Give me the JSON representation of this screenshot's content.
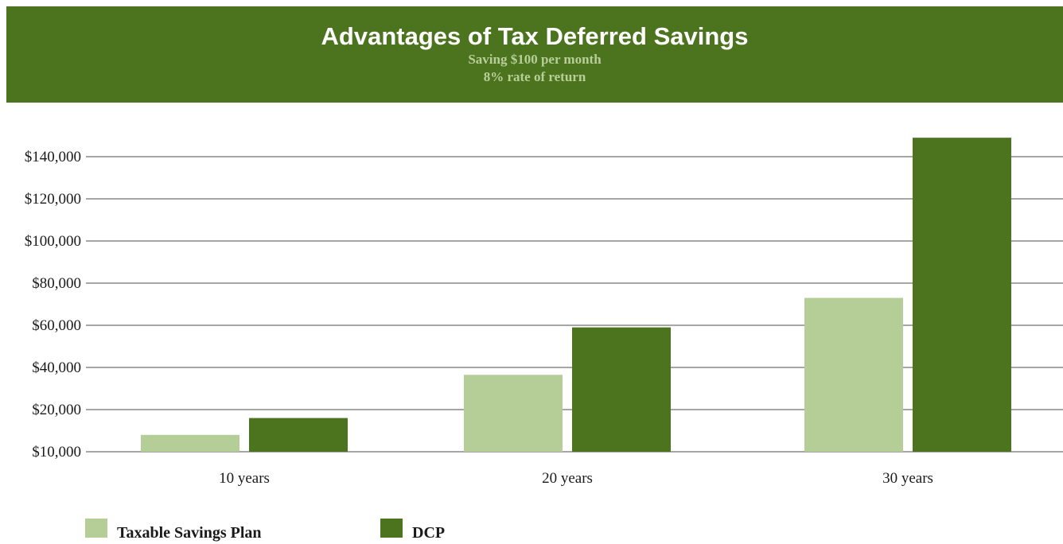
{
  "header": {
    "title": "Advantages of Tax Deferred Savings",
    "subtitle_line1": "Saving $100 per month",
    "subtitle_line2": "8% rate of return"
  },
  "colors": {
    "banner": "#4c731e",
    "taxable": "#b5cd97",
    "dcp": "#4c731e",
    "grid": "#a6a6a6"
  },
  "chart_data": {
    "type": "bar",
    "categories": [
      "10 years",
      "20 years",
      "30 years"
    ],
    "series": [
      {
        "name": "Taxable Savings Plan",
        "values": [
          14000,
          36500,
          73000
        ]
      },
      {
        "name": "DCP",
        "values": [
          18000,
          59000,
          149000
        ]
      }
    ],
    "y_ticks": [
      {
        "value": 10000,
        "label": "$10,000"
      },
      {
        "value": 20000,
        "label": "$20,000"
      },
      {
        "value": 40000,
        "label": "$40,000"
      },
      {
        "value": 60000,
        "label": "$60,000"
      },
      {
        "value": 80000,
        "label": "$80,000"
      },
      {
        "value": 100000,
        "label": "$100,000"
      },
      {
        "value": 120000,
        "label": "$120,000"
      },
      {
        "value": 140000,
        "label": "$140,000"
      }
    ],
    "ylim": [
      10000,
      150000
    ],
    "grid": true,
    "legend_position": "bottom-left"
  }
}
